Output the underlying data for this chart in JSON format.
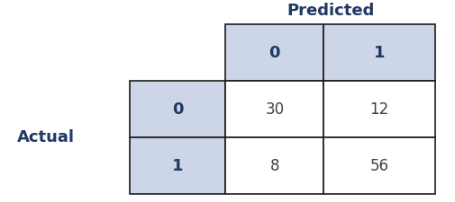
{
  "title": "Predicted",
  "row_label": "Actual",
  "header_cols": [
    "0",
    "1"
  ],
  "header_rows": [
    "0",
    "1"
  ],
  "values": [
    [
      30,
      12
    ],
    [
      8,
      56
    ]
  ],
  "header_bg": "#cdd5e8",
  "cell_bg": "#ffffff",
  "border_color": "#1a1a1a",
  "title_fontsize": 13,
  "header_fontsize": 13,
  "value_fontsize": 12,
  "axlabel_fontsize": 13,
  "header_text_color": "#1f3864",
  "value_text_color": "#404040",
  "label_text_color": "#1f3864",
  "fig_bg": "#ffffff"
}
